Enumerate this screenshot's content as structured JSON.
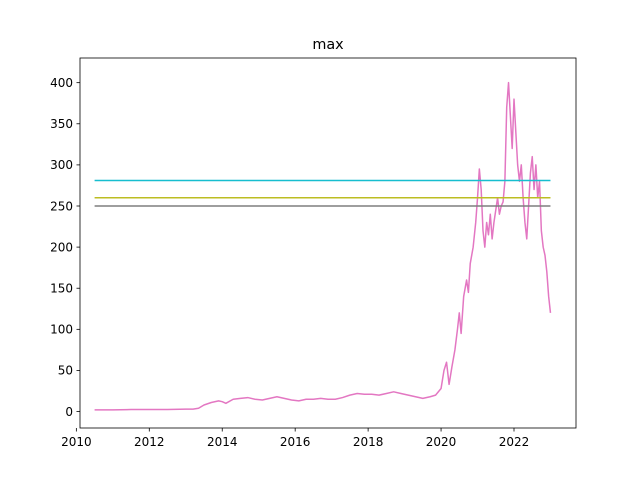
{
  "chart_data": {
    "type": "line",
    "title": "max",
    "xlabel": "",
    "ylabel": "",
    "xlim": [
      2010.1,
      2023.7
    ],
    "ylim": [
      -20,
      430
    ],
    "grid": false,
    "x_ticks": [
      2010,
      2012,
      2014,
      2016,
      2018,
      2020,
      2022
    ],
    "x_tick_labels": [
      "2010",
      "2012",
      "2014",
      "2016",
      "2018",
      "2020",
      "2022"
    ],
    "y_ticks": [
      0,
      50,
      100,
      150,
      200,
      250,
      300,
      350,
      400
    ],
    "y_tick_labels": [
      "0",
      "50",
      "100",
      "150",
      "200",
      "250",
      "300",
      "350",
      "400"
    ],
    "series": [
      {
        "color": "#e377c2",
        "x": [
          2010.5,
          2010.8,
          2011.0,
          2011.5,
          2012.0,
          2012.5,
          2013.0,
          2013.2,
          2013.35,
          2013.5,
          2013.7,
          2013.9,
          2014.0,
          2014.1,
          2014.3,
          2014.5,
          2014.7,
          2014.9,
          2015.1,
          2015.3,
          2015.5,
          2015.7,
          2015.9,
          2016.1,
          2016.3,
          2016.5,
          2016.7,
          2016.9,
          2017.1,
          2017.3,
          2017.5,
          2017.7,
          2017.9,
          2018.1,
          2018.3,
          2018.5,
          2018.7,
          2018.9,
          2019.1,
          2019.3,
          2019.5,
          2019.7,
          2019.85,
          2020.0,
          2020.08,
          2020.15,
          2020.22,
          2020.3,
          2020.38,
          2020.45,
          2020.5,
          2020.55,
          2020.62,
          2020.7,
          2020.75,
          2020.8,
          2020.88,
          2020.95,
          2021.0,
          2021.05,
          2021.1,
          2021.15,
          2021.2,
          2021.25,
          2021.3,
          2021.35,
          2021.4,
          2021.45,
          2021.5,
          2021.55,
          2021.6,
          2021.65,
          2021.7,
          2021.75,
          2021.8,
          2021.85,
          2021.9,
          2021.95,
          2022.0,
          2022.05,
          2022.1,
          2022.15,
          2022.2,
          2022.25,
          2022.3,
          2022.35,
          2022.4,
          2022.45,
          2022.5,
          2022.55,
          2022.6,
          2022.65,
          2022.7,
          2022.75,
          2022.8,
          2022.85,
          2022.9,
          2022.95,
          2023.0
        ],
        "y": [
          2,
          2,
          2,
          2.5,
          2.5,
          2.5,
          3,
          3,
          4,
          8,
          11,
          13,
          12,
          10,
          15,
          16,
          17,
          15,
          14,
          16,
          18,
          16,
          14,
          13,
          15,
          15,
          16,
          15,
          15,
          17,
          20,
          22,
          21,
          21,
          20,
          22,
          24,
          22,
          20,
          18,
          16,
          18,
          20,
          28,
          50,
          60,
          33,
          55,
          75,
          100,
          120,
          95,
          140,
          160,
          145,
          180,
          200,
          230,
          260,
          295,
          270,
          220,
          200,
          230,
          215,
          240,
          210,
          230,
          245,
          260,
          240,
          250,
          255,
          280,
          370,
          400,
          360,
          320,
          380,
          340,
          300,
          280,
          300,
          260,
          230,
          210,
          250,
          290,
          310,
          270,
          300,
          260,
          280,
          220,
          200,
          190,
          170,
          140,
          120
        ]
      },
      {
        "color": "#17becf",
        "x": [
          2010.5,
          2023.0
        ],
        "y": [
          281,
          281
        ]
      },
      {
        "color": "#bcbd22",
        "x": [
          2010.5,
          2023.0
        ],
        "y": [
          260,
          260
        ]
      },
      {
        "color": "#7f7f7f",
        "x": [
          2010.5,
          2023.0
        ],
        "y": [
          250,
          250
        ]
      }
    ]
  }
}
